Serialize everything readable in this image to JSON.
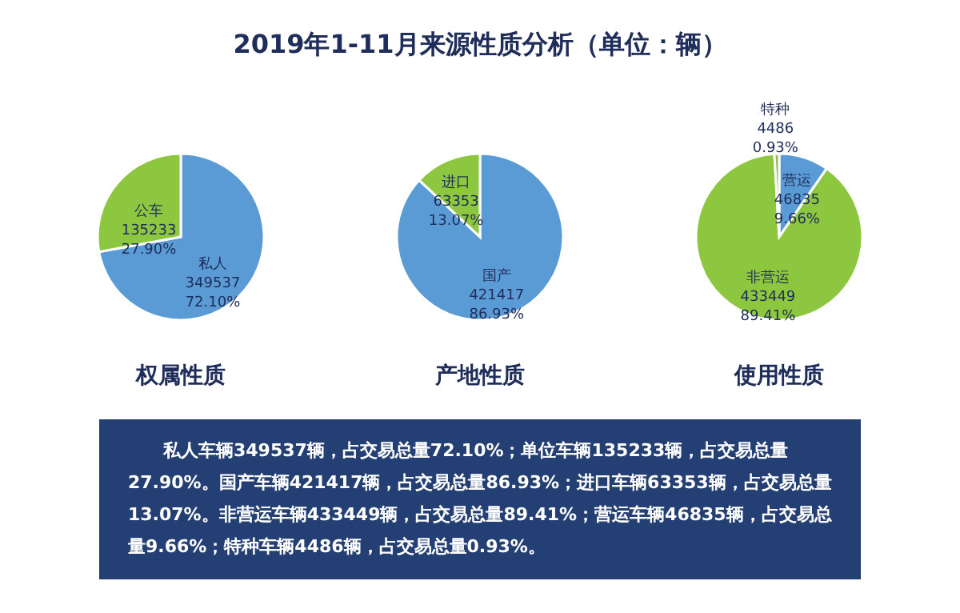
{
  "chart_data": [
    {
      "type": "other",
      "title": "2019年1-11月来源性质分析（单位：辆）"
    },
    {
      "type": "pie",
      "xlabel": "权属性质",
      "categories": [
        "私人",
        "公车"
      ],
      "values": [
        72.1,
        27.9
      ],
      "value_labels": [
        "349537\n72.10%",
        "135233\n27.90%"
      ],
      "colors": [
        "#5b9bd5",
        "#8dc63f"
      ]
    },
    {
      "type": "pie",
      "xlabel": "产地性质",
      "categories": [
        "国产",
        "进口"
      ],
      "values": [
        86.93,
        13.07
      ],
      "value_labels": [
        "421417\n86.93%",
        "63353\n13.07%"
      ],
      "colors": [
        "#5b9bd5",
        "#8dc63f"
      ]
    },
    {
      "type": "pie",
      "xlabel": "使用性质",
      "categories": [
        "营运",
        "非营运",
        "特种"
      ],
      "values": [
        9.66,
        89.41,
        0.93
      ],
      "value_labels": [
        "46835\n9.66%",
        "433449\n89.41%",
        "4486\n0.93%"
      ],
      "colors": [
        "#5b9bd5",
        "#8dc63f",
        "#9bbb59"
      ]
    },
    {
      "type": "other",
      "annotations": [
        "私人车辆349537辆，占交易总量72.10%；单位车辆135233辆，占交易总量27.90%。国产车辆421417辆，占交易总量86.93%；进口车辆63353辆，占交易总量13.07%。非营运车辆433449辆，占交易总量89.41%；营运车辆46835辆，占交易总量9.66%；特种车辆4486辆，占交易总量0.93%。"
      ]
    }
  ]
}
